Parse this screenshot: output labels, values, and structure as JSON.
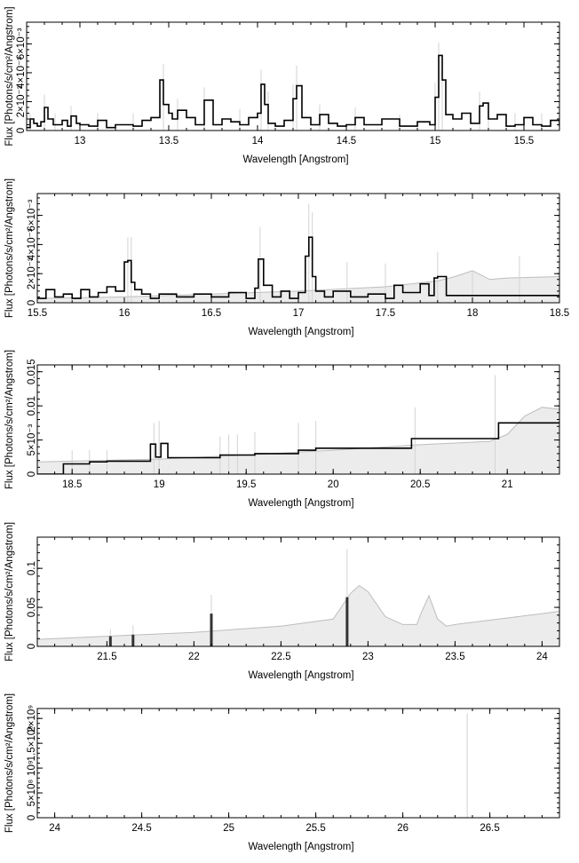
{
  "figure": {
    "colors": {
      "axis": "#000000",
      "data": "#000000",
      "model": "#dcdcdc",
      "errorbar": "#d3d3d3"
    }
  },
  "chart_data": [
    {
      "type": "line",
      "xlabel": "Wavelength [Angstrom]",
      "ylabel": "Flux [Photons/s/cm²/Angstrom]",
      "xlim": [
        12.7,
        15.7
      ],
      "ylim": [
        0,
        0.0075
      ],
      "x_ticks": [
        13,
        13.5,
        14,
        14.5,
        15,
        15.5
      ],
      "x_tick_labels": [
        "13",
        "13.5",
        "14",
        "14.5",
        "15",
        "15.5"
      ],
      "y_ticks": [
        0,
        0.002,
        0.004,
        0.006
      ],
      "y_tick_labels": [
        "0",
        "2×10⁻³",
        "4×10⁻³",
        "6×10⁻³"
      ],
      "grid": false,
      "series": [
        {
          "style": "step",
          "x": [
            12.7,
            12.72,
            12.74,
            12.76,
            12.78,
            12.8,
            12.82,
            12.85,
            12.9,
            12.93,
            12.95,
            12.98,
            13.0,
            13.05,
            13.1,
            13.15,
            13.2,
            13.3,
            13.35,
            13.4,
            13.45,
            13.47,
            13.5,
            13.52,
            13.55,
            13.6,
            13.65,
            13.7,
            13.75,
            13.8,
            13.85,
            13.9,
            13.95,
            14.0,
            14.02,
            14.04,
            14.06,
            14.1,
            14.15,
            14.2,
            14.22,
            14.25,
            14.3,
            14.35,
            14.4,
            14.45,
            14.5,
            14.55,
            14.6,
            14.7,
            14.8,
            14.9,
            14.97,
            15.0,
            15.02,
            15.04,
            15.06,
            15.1,
            15.15,
            15.2,
            15.25,
            15.27,
            15.3,
            15.35,
            15.4,
            15.45,
            15.5,
            15.55,
            15.6,
            15.65,
            15.7
          ],
          "y": [
            0.0002,
            0.0008,
            0.0005,
            0.0003,
            0.0006,
            0.0016,
            0.0008,
            0.0004,
            0.0007,
            0.0003,
            0.001,
            0.0005,
            0.0004,
            0.0003,
            0.0007,
            0.0002,
            0.0004,
            0.0003,
            0.0007,
            0.0009,
            0.0035,
            0.0018,
            0.0012,
            0.0008,
            0.0014,
            0.0009,
            0.0004,
            0.0021,
            0.0004,
            0.0008,
            0.0006,
            0.0004,
            0.0009,
            0.0012,
            0.0032,
            0.0018,
            0.0005,
            0.0003,
            0.0007,
            0.0022,
            0.0031,
            0.0009,
            0.0004,
            0.0011,
            0.0005,
            0.0003,
            0.0004,
            0.0009,
            0.0004,
            0.0008,
            0.0003,
            0.0006,
            0.0004,
            0.0023,
            0.0052,
            0.0035,
            0.0011,
            0.0008,
            0.0012,
            0.0005,
            0.0017,
            0.0019,
            0.0008,
            0.0011,
            0.0003,
            0.0004,
            0.0009,
            0.0004,
            0.0003,
            0.0007,
            0.0003
          ]
        },
        {
          "style": "errorbars",
          "x": [
            12.72,
            12.8,
            12.86,
            12.95,
            13.1,
            13.3,
            13.47,
            13.55,
            13.7,
            13.9,
            14.02,
            14.06,
            14.2,
            14.22,
            14.35,
            14.55,
            14.8,
            15.0,
            15.02,
            15.04,
            15.25,
            15.3,
            15.45,
            15.6
          ],
          "y_upper": [
            0.0012,
            0.0025,
            0.0012,
            0.0017,
            0.0012,
            0.0012,
            0.0046,
            0.0022,
            0.003,
            0.0015,
            0.0042,
            0.0027,
            0.0032,
            0.0045,
            0.0018,
            0.0016,
            0.0011,
            0.0033,
            0.0061,
            0.0045,
            0.0027,
            0.0015,
            0.0012,
            0.0012
          ]
        },
        {
          "style": "model",
          "x": [
            12.7,
            15.7
          ],
          "y": [
            0,
            0
          ]
        }
      ]
    },
    {
      "type": "line",
      "xlabel": "Wavelength [Angstrom]",
      "ylabel": "Flux [Photons/s/cm²/Angstrom]",
      "xlim": [
        15.5,
        18.5
      ],
      "ylim": [
        0,
        0.0075
      ],
      "x_ticks": [
        15.5,
        16,
        16.5,
        17,
        17.5,
        18,
        18.5
      ],
      "x_tick_labels": [
        "15.5",
        "16",
        "16.5",
        "17",
        "17.5",
        "18",
        "18.5"
      ],
      "y_ticks": [
        0,
        0.002,
        0.004,
        0.006
      ],
      "y_tick_labels": [
        "0",
        "2×10⁻³",
        "4×10⁻³",
        "6×10⁻³"
      ],
      "grid": false,
      "series": [
        {
          "style": "step",
          "x": [
            15.5,
            15.55,
            15.6,
            15.65,
            15.7,
            15.75,
            15.8,
            15.85,
            15.9,
            15.95,
            16.0,
            16.02,
            16.04,
            16.06,
            16.1,
            16.15,
            16.2,
            16.3,
            16.4,
            16.5,
            16.6,
            16.7,
            16.75,
            16.77,
            16.8,
            16.85,
            16.9,
            16.95,
            17.0,
            17.04,
            17.06,
            17.08,
            17.1,
            17.15,
            17.2,
            17.3,
            17.4,
            17.5,
            17.55,
            17.6,
            17.7,
            17.75,
            17.78,
            17.8,
            17.85,
            18.5
          ],
          "y": [
            0.0003,
            0.0009,
            0.0004,
            0.0006,
            0.0003,
            0.0009,
            0.0004,
            0.0007,
            0.0011,
            0.0008,
            0.0028,
            0.0029,
            0.0014,
            0.0009,
            0.0006,
            0.0003,
            0.0006,
            0.0004,
            0.0006,
            0.0004,
            0.0007,
            0.0003,
            0.001,
            0.003,
            0.0012,
            0.0004,
            0.0008,
            0.0003,
            0.0007,
            0.0032,
            0.0045,
            0.0018,
            0.0008,
            0.0004,
            0.0008,
            0.0004,
            0.0006,
            0.0003,
            0.0012,
            0.0007,
            0.0013,
            0.0005,
            0.0017,
            0.0018,
            0.0005,
            0.0005
          ]
        },
        {
          "style": "errorbars",
          "x": [
            16.02,
            16.04,
            16.78,
            17.06,
            17.08,
            17.28,
            17.5,
            17.8,
            18.0,
            18.27
          ],
          "y_upper": [
            0.0045,
            0.0045,
            0.0052,
            0.0068,
            0.0062,
            0.0028,
            0.0027,
            0.0035,
            0.0022,
            0.0032
          ]
        },
        {
          "style": "model",
          "x": [
            15.5,
            16.0,
            16.5,
            17.0,
            17.5,
            17.8,
            17.9,
            18.0,
            18.05,
            18.1,
            18.2,
            18.5
          ],
          "y": [
            0.0003,
            0.0004,
            0.0006,
            0.0008,
            0.0011,
            0.0015,
            0.0018,
            0.0022,
            0.0019,
            0.0016,
            0.0017,
            0.0018
          ]
        }
      ]
    },
    {
      "type": "line",
      "xlabel": "Wavelength [Angstrom]",
      "ylabel": "Flux [Photons/s/cm²/Angstrom]",
      "xlim": [
        18.3,
        21.3
      ],
      "ylim": [
        0,
        0.016
      ],
      "x_ticks": [
        18.5,
        19,
        19.5,
        20,
        20.5,
        21
      ],
      "x_tick_labels": [
        "18.5",
        "19",
        "19.5",
        "20",
        "20.5",
        "21"
      ],
      "y_ticks": [
        0,
        0.005,
        0.01,
        0.015
      ],
      "y_tick_labels": [
        "0",
        "5×10⁻³",
        "0.01",
        "0.015"
      ],
      "grid": false,
      "series": [
        {
          "style": "step",
          "x": [
            18.3,
            18.45,
            18.5,
            18.6,
            18.7,
            18.95,
            18.98,
            19.01,
            19.05,
            19.35,
            19.45,
            19.55,
            19.8,
            19.9,
            20.45,
            20.95,
            21.3
          ],
          "y": [
            0,
            0.0015,
            0.0015,
            0.0018,
            0.0019,
            0.0044,
            0.0025,
            0.0045,
            0.0024,
            0.0028,
            0.0028,
            0.003,
            0.0035,
            0.0038,
            0.0052,
            0.0075,
            0.0075
          ]
        },
        {
          "style": "errorbars",
          "x": [
            18.5,
            18.6,
            18.7,
            18.97,
            19.0,
            19.35,
            19.4,
            19.45,
            19.55,
            19.8,
            19.9,
            20.47,
            20.93
          ],
          "y_upper": [
            0.0035,
            0.0035,
            0.0035,
            0.0075,
            0.0078,
            0.0055,
            0.0058,
            0.0058,
            0.0062,
            0.0075,
            0.0078,
            0.0098,
            0.0145
          ]
        },
        {
          "style": "model",
          "x": [
            18.3,
            19.0,
            19.5,
            20.0,
            20.5,
            20.9,
            21.0,
            21.1,
            21.2,
            21.3
          ],
          "y": [
            0.0018,
            0.0022,
            0.0028,
            0.0035,
            0.0043,
            0.0048,
            0.0058,
            0.0085,
            0.0098,
            0.0095
          ]
        }
      ]
    },
    {
      "type": "line",
      "xlabel": "Wavelength [Angstrom]",
      "ylabel": "Flux [Photons/s/cm²/Angstrom]",
      "xlim": [
        21.1,
        24.1
      ],
      "ylim": [
        0,
        0.14
      ],
      "x_ticks": [
        21.5,
        22,
        22.5,
        23,
        23.5,
        24
      ],
      "x_tick_labels": [
        "21.5",
        "22",
        "22.5",
        "23",
        "23.5",
        "24"
      ],
      "y_ticks": [
        0,
        0.05,
        0.1
      ],
      "y_tick_labels": [
        "0",
        "0.05",
        "0.1"
      ],
      "grid": false,
      "series": [
        {
          "style": "bars",
          "x": [
            21.52,
            21.65,
            22.1,
            22.88
          ],
          "y": [
            0.013,
            0.015,
            0.042,
            0.063
          ]
        },
        {
          "style": "errorbars",
          "x": [
            21.52,
            21.65,
            22.1,
            22.88
          ],
          "y_upper": [
            0.022,
            0.027,
            0.066,
            0.125
          ]
        },
        {
          "style": "model",
          "x": [
            21.1,
            21.5,
            22.0,
            22.5,
            22.8,
            22.9,
            22.95,
            23.0,
            23.1,
            23.2,
            23.28,
            23.3,
            23.35,
            23.4,
            23.45,
            23.5,
            24.0,
            24.1
          ],
          "y": [
            0.009,
            0.013,
            0.018,
            0.026,
            0.035,
            0.068,
            0.078,
            0.07,
            0.038,
            0.028,
            0.028,
            0.04,
            0.065,
            0.035,
            0.026,
            0.028,
            0.042,
            0.045
          ]
        }
      ]
    },
    {
      "type": "line",
      "xlabel": "Wavelength [Angstrom]",
      "ylabel": "Flux [Photons/s/cm²/Angstrom]",
      "xlim": [
        23.9,
        26.9
      ],
      "ylim": [
        0,
        2200000000
      ],
      "x_ticks": [
        24,
        24.5,
        25,
        25.5,
        26,
        26.5
      ],
      "x_tick_labels": [
        "24",
        "24.5",
        "25",
        "25.5",
        "26",
        "26.5"
      ],
      "y_ticks": [
        0,
        500000000,
        1000000000,
        1500000000,
        2000000000
      ],
      "y_tick_labels": [
        "0",
        "5×10⁸",
        "10⁹",
        "1.5×10⁹",
        "2×10⁹"
      ],
      "grid": false,
      "series": [
        {
          "style": "errorbars",
          "x": [
            26.37
          ],
          "y_upper": [
            2100000000
          ]
        },
        {
          "style": "model",
          "x": [
            23.9,
            26.9
          ],
          "y": [
            0,
            0
          ]
        }
      ]
    }
  ]
}
